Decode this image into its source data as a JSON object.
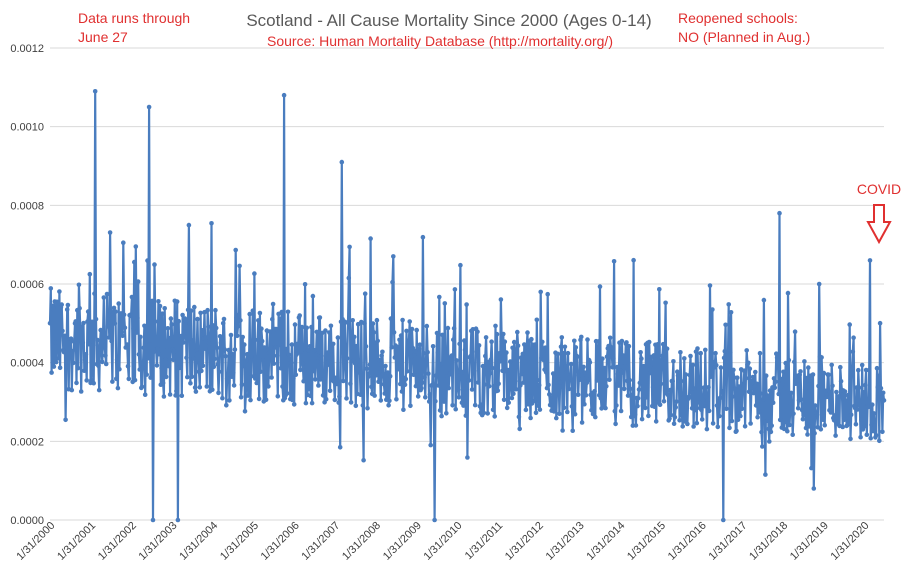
{
  "chart_data": {
    "type": "line",
    "title": "Scotland - All Cause Mortality Since 2000 (Ages 0-14)",
    "subtitle": "Source: Human Mortality Database (http://mortality.org/)",
    "xlabel": "",
    "ylabel": "",
    "ylim": [
      0,
      0.0012
    ],
    "grid": true,
    "legend": "none",
    "y_ticks": [
      "0.0000",
      "0.0002",
      "0.0004",
      "0.0006",
      "0.0008",
      "0.0010",
      "0.0012"
    ],
    "x_ticks": [
      "1/31/2000",
      "1/31/2001",
      "1/31/2002",
      "1/31/2003",
      "1/31/2004",
      "1/31/2005",
      "1/31/2006",
      "1/31/2007",
      "1/31/2008",
      "1/31/2009",
      "1/31/2010",
      "1/31/2011",
      "1/31/2012",
      "1/31/2013",
      "1/31/2014",
      "1/31/2015",
      "1/31/2016",
      "1/31/2017",
      "1/31/2018",
      "1/31/2019",
      "1/31/2020"
    ],
    "x_start": "2000-01-01",
    "x_end": "2020-06-27",
    "series_color": "#4a7dbf",
    "annotations": {
      "data_through": "Data runs through June 27",
      "data_through_line1": "Data runs through",
      "data_through_line2": "June 27",
      "reopened_line1": "Reopened schools:",
      "reopened_line2": "NO (Planned in Aug.)",
      "covid_label": "COVID",
      "color": "#e03030"
    },
    "series_samples": {
      "note": "",
      "peaks": [
        {
          "date": "2001-02-10",
          "value": 0.00109
        },
        {
          "date": "2002-06-10",
          "value": 0.00105
        },
        {
          "date": "2005-10-01",
          "value": 0.00108
        },
        {
          "date": "2007-03-01",
          "value": 0.00091
        },
        {
          "date": "2017-12-01",
          "value": 0.00078
        },
        {
          "date": "2020-02-20",
          "value": 0.00066
        }
      ],
      "troughs": [
        {
          "date": "2002-07-15",
          "value": 0.0
        },
        {
          "date": "2003-02-20",
          "value": 0.0
        },
        {
          "date": "2009-06-15",
          "value": 0.0
        },
        {
          "date": "2016-07-15",
          "value": 0.0
        }
      ]
    }
  }
}
